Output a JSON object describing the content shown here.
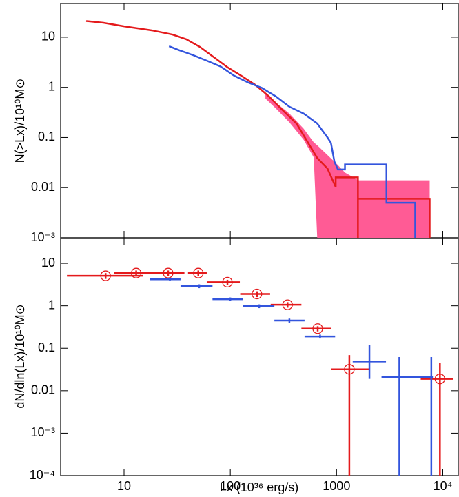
{
  "chart_data": [
    {
      "type": "line",
      "ylabel": "N(>Lx)/10¹⁰M⊙",
      "xlog": true,
      "ylog": true,
      "xlim": [
        2.53,
        14000
      ],
      "ylim": [
        0.001,
        47
      ],
      "xticks": [
        10,
        100,
        1000,
        10000
      ],
      "yticks": [
        10,
        1,
        {
          "value": 0.1,
          "label": "0.1"
        },
        {
          "value": 0.01,
          "label": "0.01"
        },
        {
          "value": 0.001,
          "label": "10⁻³"
        }
      ],
      "band": {
        "color": "#ff5b95",
        "x": [
          214,
          268,
          360,
          490,
          610,
          658,
          1000,
          1200,
          1610,
          7530
        ],
        "upper": [
          0.75,
          0.5,
          0.3,
          0.15,
          0.08,
          0.07,
          0.03,
          0.02,
          0.014,
          0.014
        ],
        "lower": [
          0.6,
          0.38,
          0.2,
          0.09,
          0.04,
          0.001,
          0.001,
          0.001,
          0.001,
          0.001
        ]
      },
      "series": [
        {
          "color": "#e41a1c",
          "x": [
            4.4,
            6.4,
            10,
            18.2,
            28.5,
            38.5,
            51.7,
            69.9,
            94.4,
            127,
            171,
            231,
            311,
            420,
            526,
            658,
            822,
            982,
            982,
            1590,
            1590,
            7530,
            7530,
            null,
            1590,
            1590
          ],
          "values": [
            21,
            19.4,
            16.5,
            13.7,
            11.3,
            9.1,
            6.4,
            4.0,
            2.5,
            1.7,
            1.13,
            0.66,
            0.35,
            0.19,
            0.086,
            0.039,
            0.024,
            0.0103,
            0.016,
            0.016,
            0.006,
            0.006,
            0.001,
            null,
            0.006,
            0.001
          ]
        },
        {
          "color": "#3355dd",
          "x": [
            26.5,
            33,
            44.5,
            60,
            81,
            109,
            147,
            199,
            268,
            360,
            490,
            658,
            822,
            886,
            955,
            1030,
            1200,
            1200,
            2950,
            2950,
            5500,
            5500
          ],
          "values": [
            6.6,
            5.5,
            4.4,
            3.4,
            2.6,
            1.7,
            1.25,
            0.97,
            0.66,
            0.41,
            0.3,
            0.19,
            0.1,
            0.078,
            0.033,
            0.023,
            0.023,
            0.029,
            0.029,
            0.005,
            0.005,
            0.001
          ]
        }
      ]
    },
    {
      "type": "errorbar",
      "xlabel": "Lx (10³⁶ erg/s)",
      "ylabel": "dN/dln(Lx)/10¹⁰M⊙",
      "xlog": true,
      "ylog": true,
      "xlim": [
        2.53,
        14000
      ],
      "ylim": [
        0.0001,
        40
      ],
      "xticks": [
        10,
        100,
        1000,
        {
          "value": 10000,
          "label": "10⁴"
        }
      ],
      "yticks": [
        10,
        1,
        {
          "value": 0.1,
          "label": "0.1"
        },
        {
          "value": 0.01,
          "label": "0.01"
        },
        {
          "value": 0.001,
          "label": "10⁻³"
        },
        {
          "value": 0.0001,
          "label": "10⁻⁴"
        }
      ],
      "series": [
        {
          "color": "#e41a1c",
          "marker": "circle",
          "x": [
            6.7,
            13,
            26,
            50,
            94,
            178,
            346,
            665,
            1320,
            9400
          ],
          "x_lo": [
            2.9,
            8,
            19,
            40,
            60,
            124,
            240,
            467,
            890,
            6200
          ],
          "x_hi": [
            15,
            28,
            37,
            60,
            123,
            237,
            467,
            890,
            2030,
            12500
          ],
          "values": [
            5.1,
            5.9,
            5.9,
            5.9,
            3.6,
            1.9,
            1.06,
            0.29,
            0.032,
            0.019
          ],
          "y_lo": [
            4.3,
            5.0,
            5.0,
            5.0,
            3.1,
            1.6,
            0.9,
            0.25,
            0.0001,
            0.0001
          ],
          "y_hi": [
            5.9,
            6.8,
            6.8,
            6.8,
            4.1,
            2.2,
            1.22,
            0.33,
            0.069,
            0.046
          ]
        },
        {
          "color": "#3355dd",
          "marker": "none",
          "x": [
            27,
            51,
            100,
            187,
            360,
            700,
            2040,
            3900,
            7800
          ],
          "x_lo": [
            17.4,
            34,
            68,
            131,
            260,
            500,
            1420,
            2650,
            5600
          ],
          "x_hi": [
            34,
            68,
            131,
            260,
            500,
            970,
            2920,
            5600,
            8200
          ],
          "values": [
            4.2,
            2.9,
            1.43,
            0.98,
            0.45,
            0.19,
            0.049,
            0.021,
            0.021
          ],
          "y_lo": [
            3.8,
            2.6,
            1.29,
            0.88,
            0.4,
            0.17,
            0.019,
            0.0001,
            0.0001
          ],
          "y_hi": [
            4.6,
            3.2,
            1.57,
            1.08,
            0.5,
            0.21,
            0.12,
            0.062,
            0.062
          ]
        }
      ]
    }
  ]
}
